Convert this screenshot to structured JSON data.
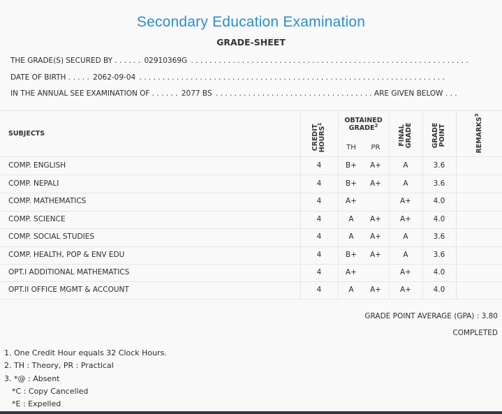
{
  "header": {
    "title": "Secondary Education Examination",
    "subtitle": "GRADE-SHEET"
  },
  "info": {
    "secured_by_label": "THE GRADE(S) SECURED BY . . . . . .",
    "secured_by_value": "02910369G",
    "secured_by_tail": ". . . . . . . . . . . . . . . . . . . . . . . . . . . . . . . . . . . . . . . . . . . . . . . . . . . . . . . . . . . .",
    "dob_label": "DATE OF BIRTH . . . . .",
    "dob_value": "2062-09-04",
    "dob_tail": ". . . . . . . . . . . . . . . . . . . . . . . . . . . . . . . . . . . . . . . . . . . . . . . . . . . . . . . . . . . . . . . . . .",
    "exam_label": "IN THE ANNUAL SEE EXAMINATION OF . . . . . .",
    "exam_value": "2077 BS",
    "exam_tail": ". . . . . . . . . . . . . . . . . . . . . . . . . . . . . . . . . . ARE GIVEN BELOW . . ."
  },
  "table": {
    "col_subjects": "SUBJECTS",
    "col_credit_1": "CREDIT",
    "col_credit_2": "HOURS",
    "col_credit_sup": "1",
    "col_obtained_1": "OBTAINED",
    "col_obtained_2": "GRADE",
    "col_obtained_sup": "2",
    "col_th": "TH",
    "col_pr": "PR",
    "col_final_1": "FINAL",
    "col_final_2": "GRADE",
    "col_gp_1": "GRADE",
    "col_gp_2": "POINT",
    "col_remarks": "REMARKS",
    "col_remarks_sup": "3",
    "rows": [
      {
        "subject": "COMP. ENGLISH",
        "credit": "4",
        "th": "B+",
        "pr": "A+",
        "final": "A",
        "gp": "3.6"
      },
      {
        "subject": "COMP. NEPALI",
        "credit": "4",
        "th": "B+",
        "pr": "A+",
        "final": "A",
        "gp": "3.6"
      },
      {
        "subject": "COMP. MATHEMATICS",
        "credit": "4",
        "th": "A+",
        "pr": "",
        "final": "A+",
        "gp": "4.0"
      },
      {
        "subject": "COMP. SCIENCE",
        "credit": "4",
        "th": "A",
        "pr": "A+",
        "final": "A+",
        "gp": "4.0"
      },
      {
        "subject": "COMP. SOCIAL STUDIES",
        "credit": "4",
        "th": "A",
        "pr": "A+",
        "final": "A",
        "gp": "3.6"
      },
      {
        "subject": "COMP. HEALTH, POP & ENV EDU",
        "credit": "4",
        "th": "B+",
        "pr": "A+",
        "final": "A",
        "gp": "3.6"
      },
      {
        "subject": "OPT.I ADDITIONAL MATHEMATICS",
        "credit": "4",
        "th": "A+",
        "pr": "",
        "final": "A+",
        "gp": "4.0"
      },
      {
        "subject": "OPT.II OFFICE MGMT & ACCOUNT",
        "credit": "4",
        "th": "A",
        "pr": "A+",
        "final": "A+",
        "gp": "4.0"
      }
    ]
  },
  "summary": {
    "gpa": "GRADE POINT AVERAGE (GPA) : 3.80",
    "status": "COMPLETED"
  },
  "notes": {
    "n1": "1. One Credit Hour equals 32 Clock Hours.",
    "n2": "2. TH : Theory, PR : Practical",
    "n3": "3. *@ : Absent",
    "n3b": "*C : Copy Cancelled",
    "n3c": "*E : Expelled"
  }
}
